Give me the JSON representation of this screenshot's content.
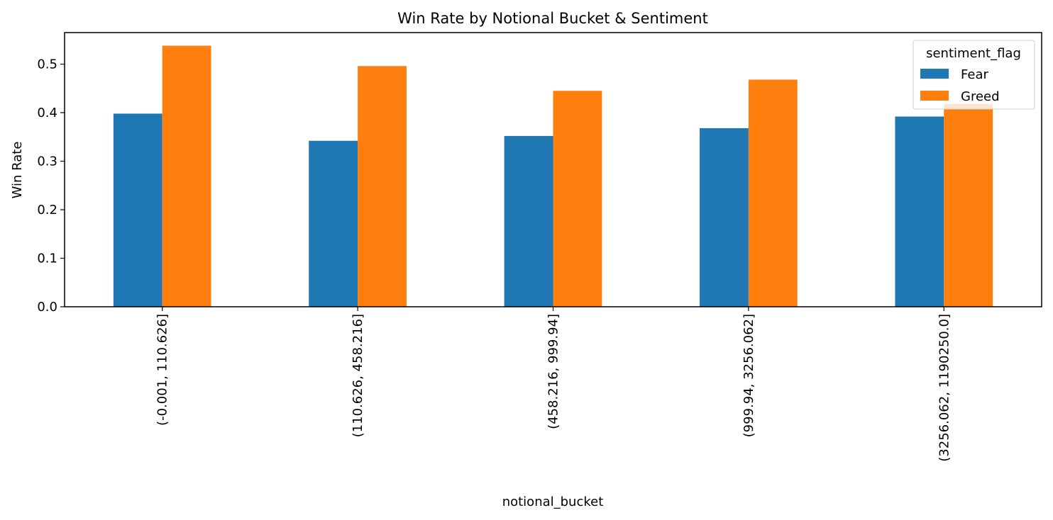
{
  "chart_data": {
    "type": "bar",
    "title": "Win Rate by Notional Bucket & Sentiment",
    "xlabel": "notional_bucket",
    "ylabel": "Win Rate",
    "categories": [
      "(-0.001, 110.626]",
      "(110.626, 458.216]",
      "(458.216, 999.94]",
      "(999.94, 3256.062]",
      "(3256.062, 1190250.0]"
    ],
    "series": [
      {
        "name": "Fear",
        "color": "#1f77b4",
        "values": [
          0.398,
          0.342,
          0.352,
          0.368,
          0.392
        ]
      },
      {
        "name": "Greed",
        "color": "#ff7f0e",
        "values": [
          0.538,
          0.496,
          0.445,
          0.468,
          0.418
        ]
      }
    ],
    "ylim": [
      0,
      0.565
    ],
    "yticks": [
      "0.0",
      "0.1",
      "0.2",
      "0.3",
      "0.4",
      "0.5"
    ],
    "legend": {
      "title": "sentiment_flag",
      "placement": "top-right"
    },
    "grid": false
  }
}
